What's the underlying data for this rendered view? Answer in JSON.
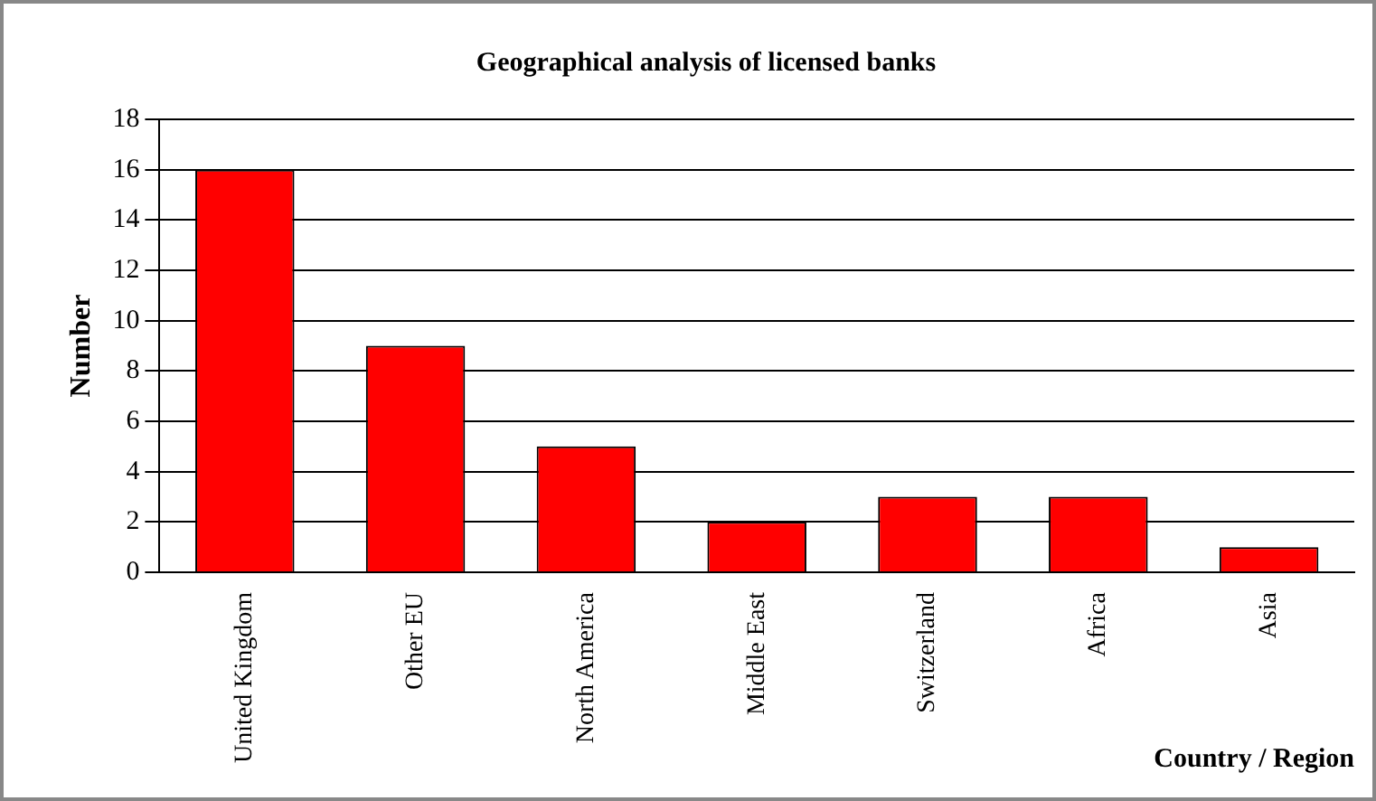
{
  "chart_data": {
    "type": "bar",
    "title": "Geographical analysis of licensed banks",
    "xlabel": "Country / Region",
    "ylabel": "Number",
    "categories": [
      "United Kingdom",
      "Other EU",
      "North America",
      "Middle East",
      "Switzerland",
      "Africa",
      "Asia"
    ],
    "values": [
      16,
      9,
      5,
      2,
      3,
      3,
      1
    ],
    "color": "#ff0000",
    "ylim": [
      0,
      18
    ],
    "yticks": [
      0,
      2,
      4,
      6,
      8,
      10,
      12,
      14,
      16,
      18
    ],
    "grid": "y"
  }
}
